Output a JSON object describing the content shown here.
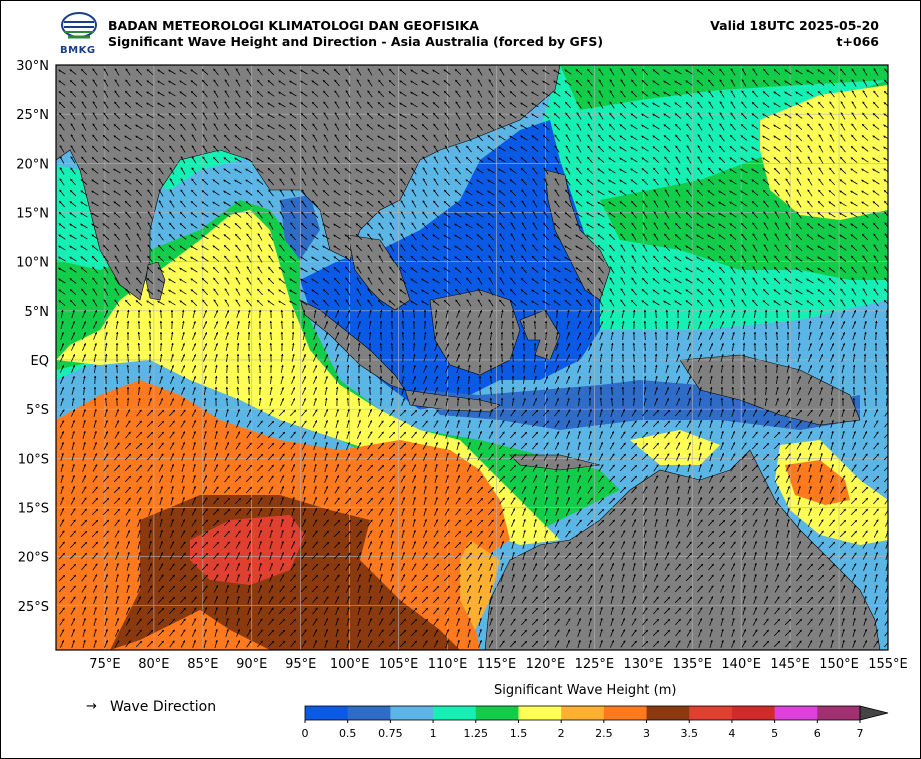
{
  "header": {
    "organization": "BADAN METEOROLOGI KLIMATOLOGI DAN GEOFISIKA",
    "title": "Significant Wave Height and Direction - Asia Australia (forced by GFS)",
    "valid": "Valid 18UTC 2025-05-20",
    "lead_time": "t+066",
    "logo_text": "BMKG"
  },
  "axes": {
    "lon_labels": [
      "75°E",
      "80°E",
      "85°E",
      "90°E",
      "95°E",
      "100°E",
      "105°E",
      "110°E",
      "115°E",
      "120°E",
      "125°E",
      "130°E",
      "135°E",
      "140°E",
      "145°E",
      "150°E",
      "155°E"
    ],
    "lat_labels": [
      "30°N",
      "25°N",
      "20°N",
      "15°N",
      "10°N",
      "5°N",
      "EQ",
      "5°S",
      "10°S",
      "15°S",
      "20°S",
      "25°S"
    ],
    "lon_range": [
      70,
      155
    ],
    "lat_range": [
      -29.5,
      30
    ],
    "grid": true
  },
  "legend": {
    "arrow": "→",
    "label": "Wave Direction"
  },
  "colorbar": {
    "title": "Significant Wave Height (m)",
    "ticks": [
      "0",
      "0.5",
      "0.75",
      "1",
      "1.25",
      "1.5",
      "2",
      "2.5",
      "3",
      "3.5",
      "4",
      "5",
      "6",
      "7"
    ],
    "colors": [
      "#0a5ae6",
      "#2e6cc8",
      "#5bb6e6",
      "#17f0b4",
      "#13cc4a",
      "#ffff55",
      "#ffb030",
      "#ff7a1e",
      "#8b3a10",
      "#e04030",
      "#d02a2a",
      "#dd40dd",
      "#a03070"
    ],
    "extend": "max"
  },
  "colors": {
    "land": "#808080",
    "grid": "#b4b4b4"
  }
}
